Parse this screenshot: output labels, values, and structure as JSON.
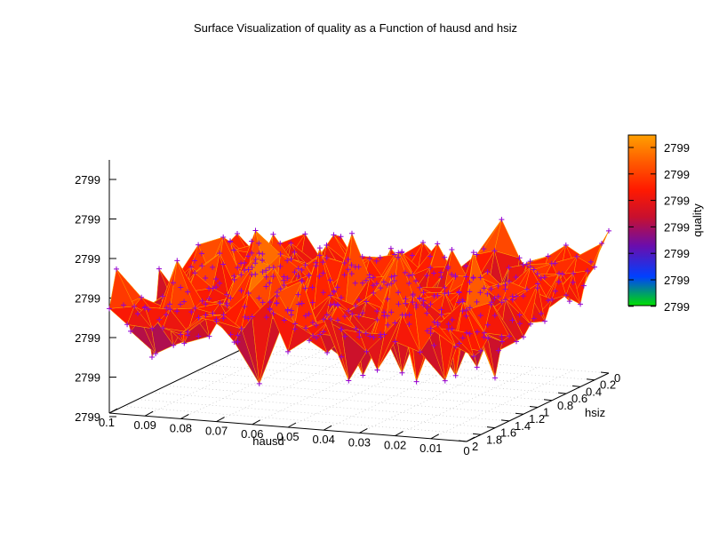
{
  "chart_data": {
    "type": "surface",
    "title": "Surface Visualization of quality as a Function of hausd and hsiz",
    "xlabel": "hausd",
    "ylabel": "hsiz",
    "zlabel": "quality",
    "xlim": [
      0.1,
      0.0
    ],
    "ylim": [
      0,
      2
    ],
    "x_ticks": [
      "0.1",
      "0.09",
      "0.08",
      "0.07",
      "0.06",
      "0.05",
      "0.04",
      "0.03",
      "0.02",
      "0.01",
      "0"
    ],
    "y_ticks": [
      "0",
      "0.2",
      "0.4",
      "0.6",
      "0.8",
      "1",
      "1.2",
      "1.4",
      "1.6",
      "1.8",
      "2"
    ],
    "z_ticks": [
      "2799",
      "2799",
      "2799",
      "2799",
      "2799",
      "2799",
      "2799"
    ],
    "colorbar_ticks": [
      "2799",
      "2799",
      "2799",
      "2799",
      "2799",
      "2799",
      "2799"
    ],
    "grid": true,
    "colorbar": "right",
    "series": [
      {
        "marker": "+",
        "marker_color": "#9400d3",
        "edge_color": "#ffa500"
      }
    ]
  },
  "colors": {
    "palette": [
      "#00e000",
      "#0040ff",
      "#6a0dad",
      "#c8102e",
      "#ff1a00",
      "#ff5a00",
      "#ffa000"
    ],
    "marker": "#9400d3",
    "edge": "#ffa500"
  }
}
